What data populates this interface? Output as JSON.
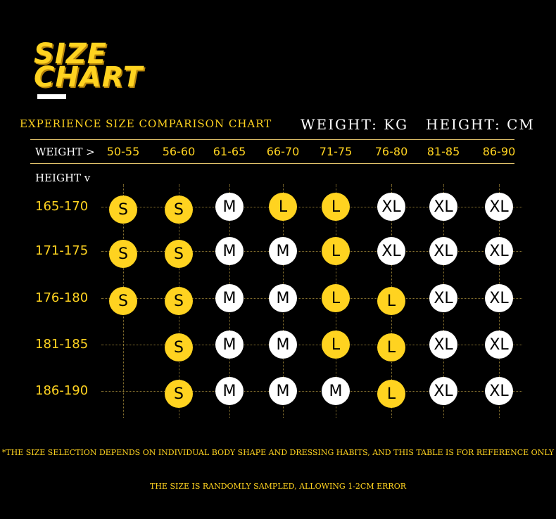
{
  "title": {
    "line1": "SIZE",
    "line2": "CHART"
  },
  "subtitle": "EXPERIENCE SIZE COMPARISON CHART",
  "units": {
    "weight": "WEIGHT: KG",
    "height": "HEIGHT: CM"
  },
  "weight_label": "WEIGHT >",
  "height_label": "HEIGHT v",
  "weights": [
    "50-55",
    "56-60",
    "61-65",
    "66-70",
    "71-75",
    "76-80",
    "81-85",
    "86-90"
  ],
  "heights": [
    "165-170",
    "171-175",
    "176-180",
    "181-185",
    "186-190"
  ],
  "grid": [
    [
      "S",
      "S",
      "M",
      "L",
      "L",
      "XL",
      "XL",
      "XL"
    ],
    [
      "S",
      "S",
      "M",
      "M",
      "L",
      "XL",
      "XL",
      "XL"
    ],
    [
      "S",
      "S",
      "M",
      "M",
      "L",
      "L",
      "XL",
      "XL"
    ],
    [
      "",
      "S",
      "M",
      "M",
      "L",
      "L",
      "XL",
      "XL"
    ],
    [
      "",
      "S",
      "M",
      "M",
      "M",
      "L",
      "XL",
      "XL"
    ]
  ],
  "colors": {
    "S": "#ffd320",
    "L": "#ffd320",
    "M": "#ffffff",
    "XL": "#ffffff",
    "accent": "#ffd320"
  },
  "notes": [
    "*THE SIZE SELECTION DEPENDS ON INDIVIDUAL BODY SHAPE AND DRESSING HABITS, AND THIS TABLE IS FOR REFERENCE ONLY",
    "THE SIZE IS RANDOMLY SAMPLED, ALLOWING 1-2CM ERROR"
  ]
}
